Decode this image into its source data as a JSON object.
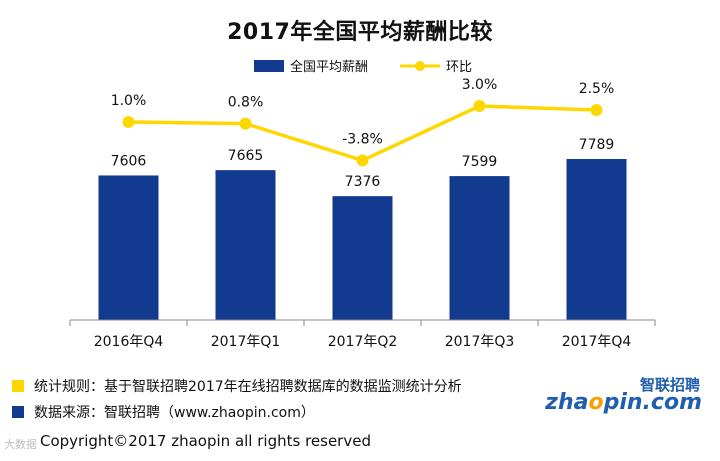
{
  "chart_data": {
    "type": "bar",
    "title": "2017年全国平均薪酬比较",
    "categories": [
      "2016年Q4",
      "2017年Q1",
      "2017年Q2",
      "2017年Q3",
      "2017年Q4"
    ],
    "series": [
      {
        "name": "全国平均薪酬",
        "type": "bar",
        "values": [
          7606,
          7665,
          7376,
          7599,
          7789
        ],
        "labels": [
          "7606",
          "7665",
          "7376",
          "7599",
          "7789"
        ],
        "color": "#123a8f"
      },
      {
        "name": "环比",
        "type": "line",
        "values": [
          1.0,
          0.8,
          -3.8,
          3.0,
          2.5
        ],
        "labels": [
          "1.0%",
          "0.8%",
          "-3.8%",
          "3.0%",
          "2.5%"
        ],
        "color": "#ffd700"
      }
    ],
    "ylim": [
      6000,
      8000
    ],
    "secondary_ylim": [
      -10,
      10
    ],
    "legend": "top-center",
    "grid": false,
    "xlabel": "",
    "ylabel": ""
  },
  "notes": [
    {
      "text": "统计规则：基于智联招聘2017年在线招聘数据库的数据监测统计分析",
      "color": "#ffd700"
    },
    {
      "text": "数据来源：智联招聘（www.zhaopin.com）",
      "color": "#123a8f"
    }
  ],
  "logo": {
    "cn": "智联招聘",
    "en_pre": "zha",
    "en_dot": "o",
    "en_post": "pin.com"
  },
  "copyright": "Copyright©2017 zhaopin all rights reserved",
  "watermark": "大数据"
}
